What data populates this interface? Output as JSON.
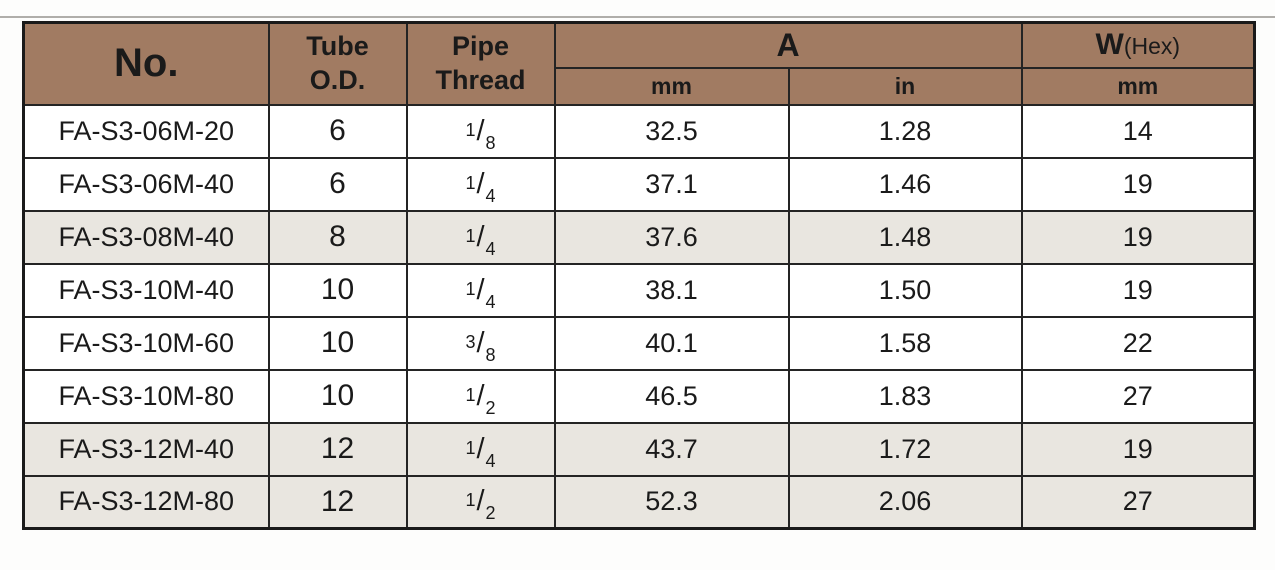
{
  "colors": {
    "header_bg": "#A17B62",
    "header_text": "#F7F4F0",
    "row_bg": "#FFFFFF",
    "row_shaded_bg": "#E9E6E0",
    "grid_border": "#242424",
    "outer_border": "#1A1A1A",
    "body_text": "#1A1A1A",
    "top_divider": "#B0AEAA"
  },
  "table": {
    "header": {
      "no": "No.",
      "tube_od_line1": "Tube",
      "tube_od_line2": "O.D.",
      "pipe_thread_line1": "Pipe",
      "pipe_thread_line2": "Thread",
      "a": "A",
      "a_mm": "mm",
      "a_in": "in",
      "w": "W",
      "w_hex": "(Hex)",
      "w_mm": "mm"
    },
    "rows": [
      {
        "no": "FA-S3-06M-20",
        "tube_od": "6",
        "thread_num": "1",
        "thread_den": "8",
        "a_mm": "32.5",
        "a_in": "1.28",
        "w_mm": "14",
        "shaded": false
      },
      {
        "no": "FA-S3-06M-40",
        "tube_od": "6",
        "thread_num": "1",
        "thread_den": "4",
        "a_mm": "37.1",
        "a_in": "1.46",
        "w_mm": "19",
        "shaded": false
      },
      {
        "no": "FA-S3-08M-40",
        "tube_od": "8",
        "thread_num": "1",
        "thread_den": "4",
        "a_mm": "37.6",
        "a_in": "1.48",
        "w_mm": "19",
        "shaded": true
      },
      {
        "no": "FA-S3-10M-40",
        "tube_od": "10",
        "thread_num": "1",
        "thread_den": "4",
        "a_mm": "38.1",
        "a_in": "1.50",
        "w_mm": "19",
        "shaded": false
      },
      {
        "no": "FA-S3-10M-60",
        "tube_od": "10",
        "thread_num": "3",
        "thread_den": "8",
        "a_mm": "40.1",
        "a_in": "1.58",
        "w_mm": "22",
        "shaded": false
      },
      {
        "no": "FA-S3-10M-80",
        "tube_od": "10",
        "thread_num": "1",
        "thread_den": "2",
        "a_mm": "46.5",
        "a_in": "1.83",
        "w_mm": "27",
        "shaded": false
      },
      {
        "no": "FA-S3-12M-40",
        "tube_od": "12",
        "thread_num": "1",
        "thread_den": "4",
        "a_mm": "43.7",
        "a_in": "1.72",
        "w_mm": "19",
        "shaded": true
      },
      {
        "no": "FA-S3-12M-80",
        "tube_od": "12",
        "thread_num": "1",
        "thread_den": "2",
        "a_mm": "52.3",
        "a_in": "2.06",
        "w_mm": "27",
        "shaded": true
      }
    ]
  }
}
